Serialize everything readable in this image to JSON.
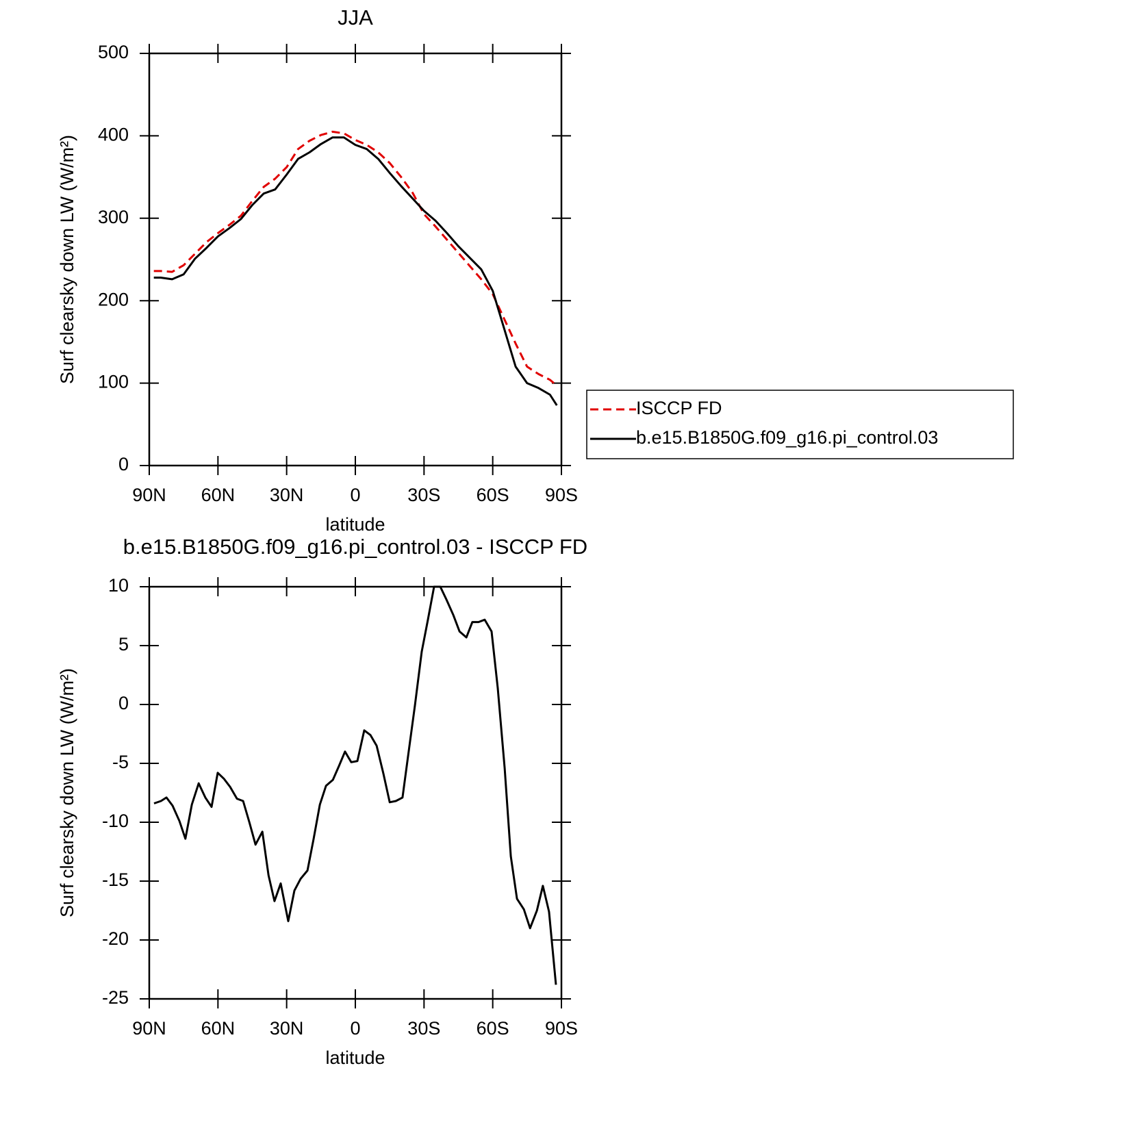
{
  "chart_data": [
    {
      "type": "line",
      "title": "JJA",
      "xlabel": "latitude",
      "ylabel": "Surf clearsky down LW (W/m²)",
      "x": [
        88,
        85,
        80,
        75,
        70,
        65,
        60,
        55,
        50,
        45,
        40,
        35,
        30,
        25,
        20,
        15,
        10,
        5,
        0,
        -5,
        -10,
        -15,
        -20,
        -25,
        -30,
        -35,
        -40,
        -45,
        -50,
        -55,
        -60,
        -65,
        -70,
        -75,
        -80,
        -85,
        -88
      ],
      "series": [
        {
          "name": "ISCCP FD",
          "color": "#e00000",
          "dash": true,
          "values": [
            236,
            236,
            235,
            243,
            257,
            271,
            282,
            292,
            303,
            321,
            338,
            348,
            362,
            384,
            394,
            401,
            405,
            403,
            395,
            389,
            380,
            367,
            350,
            331,
            305,
            290,
            274,
            258,
            242,
            226,
            208,
            178,
            148,
            120,
            111,
            104,
            97
          ]
        },
        {
          "name": "b.e15.B1850G.f09_g16.pi_control.03",
          "color": "#000000",
          "dash": false,
          "values": [
            228,
            228,
            226,
            232,
            251,
            264,
            278,
            288,
            299,
            316,
            330,
            335,
            353,
            372,
            380,
            390,
            398,
            398,
            389,
            384,
            372,
            355,
            339,
            324,
            309,
            297,
            282,
            266,
            252,
            238,
            212,
            166,
            120,
            100,
            94,
            86,
            73
          ]
        }
      ],
      "xlim": [
        90,
        -90
      ],
      "xticks": [
        {
          "value": 90,
          "label": "90N"
        },
        {
          "value": 60,
          "label": "60N"
        },
        {
          "value": 30,
          "label": "30N"
        },
        0,
        {
          "value": -30,
          "label": "30S"
        },
        {
          "value": -60,
          "label": "60S"
        },
        {
          "value": -90,
          "label": "90S"
        }
      ],
      "ylim": [
        0,
        500
      ],
      "yticks": [
        0,
        100,
        200,
        300,
        400,
        500
      ],
      "legend": "right"
    },
    {
      "type": "line",
      "title": "b.e15.B1850G.f09_g16.pi_control.03 - ISCCP FD",
      "xlabel": "latitude",
      "ylabel": "Surf clearsky down LW (W/m²)",
      "x": [
        87.9,
        84.9,
        82.5,
        79.8,
        76.8,
        74.2,
        71.4,
        68.4,
        65.5,
        62.8,
        60.1,
        57.4,
        54.7,
        51.7,
        49.0,
        46.3,
        43.6,
        40.6,
        37.9,
        35.3,
        32.6,
        29.3,
        26.6,
        23.9,
        20.9,
        18.2,
        15.5,
        12.8,
        9.8,
        7.1,
        4.5,
        1.8,
        -0.9,
        -3.9,
        -6.6,
        -9.3,
        -12.3,
        -15.0,
        -17.7,
        -20.6,
        -23.3,
        -26.0,
        -29.0,
        -31.7,
        -34.4,
        -37.1,
        -39.8,
        -42.8,
        -45.5,
        -48.5,
        -51.1,
        -53.8,
        -56.5,
        -59.5,
        -62.2,
        -65.2,
        -67.9,
        -70.6,
        -73.6,
        -76.3,
        -79.3,
        -81.9,
        -84.6,
        -87.6
      ],
      "series": [
        {
          "color": "#000000",
          "dash": false,
          "values": [
            -8.4,
            -8.2,
            -7.9,
            -8.6,
            -9.9,
            -11.4,
            -8.5,
            -6.7,
            -7.9,
            -8.7,
            -5.8,
            -6.3,
            -7.0,
            -8.0,
            -8.2,
            -10.0,
            -11.9,
            -10.8,
            -14.5,
            -16.7,
            -15.2,
            -18.4,
            -15.8,
            -14.8,
            -14.1,
            -11.4,
            -8.5,
            -6.9,
            -6.4,
            -5.2,
            -4.0,
            -4.9,
            -4.8,
            -2.2,
            -2.6,
            -3.5,
            -5.9,
            -8.3,
            -8.2,
            -7.9,
            -4.0,
            -0.1,
            4.5,
            7.2,
            10.0,
            10.0,
            8.9,
            7.6,
            6.2,
            5.7,
            7.0,
            7.0,
            7.2,
            6.2,
            1.4,
            -5.4,
            -12.9,
            -16.5,
            -17.4,
            -19.0,
            -17.5,
            -15.4,
            -17.6,
            -23.8
          ]
        }
      ],
      "xlim": [
        90,
        -90
      ],
      "xticks": [
        {
          "value": 90,
          "label": "90N"
        },
        {
          "value": 60,
          "label": "60N"
        },
        {
          "value": 30,
          "label": "30N"
        },
        0,
        {
          "value": -30,
          "label": "30S"
        },
        {
          "value": -60,
          "label": "60S"
        },
        {
          "value": -90,
          "label": "90S"
        }
      ],
      "ylim": [
        -25,
        10
      ],
      "yticks": [
        -25,
        -20,
        -15,
        -10,
        -5,
        0,
        5,
        10
      ]
    }
  ]
}
